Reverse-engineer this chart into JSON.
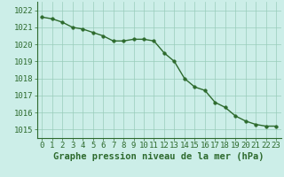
{
  "x": [
    0,
    1,
    2,
    3,
    4,
    5,
    6,
    7,
    8,
    9,
    10,
    11,
    12,
    13,
    14,
    15,
    16,
    17,
    18,
    19,
    20,
    21,
    22,
    23
  ],
  "y": [
    1021.6,
    1021.5,
    1021.3,
    1021.0,
    1020.9,
    1020.7,
    1020.5,
    1020.2,
    1020.2,
    1020.3,
    1020.3,
    1020.2,
    1019.5,
    1019.0,
    1018.0,
    1017.5,
    1017.3,
    1016.6,
    1016.3,
    1015.8,
    1015.5,
    1015.3,
    1015.2,
    1015.2
  ],
  "xlabel": "Graphe pression niveau de la mer (hPa)",
  "ylim": [
    1014.5,
    1022.5
  ],
  "yticks": [
    1015,
    1016,
    1017,
    1018,
    1019,
    1020,
    1021,
    1022
  ],
  "xticks": [
    0,
    1,
    2,
    3,
    4,
    5,
    6,
    7,
    8,
    9,
    10,
    11,
    12,
    13,
    14,
    15,
    16,
    17,
    18,
    19,
    20,
    21,
    22,
    23
  ],
  "line_color": "#2d6a2d",
  "marker_color": "#2d6a2d",
  "bg_color": "#cceee8",
  "grid_color": "#99ccbb",
  "xlabel_color": "#2d6a2d",
  "xlabel_fontsize": 7.5,
  "tick_fontsize": 6.5,
  "line_width": 1.0,
  "marker_size": 2.5
}
